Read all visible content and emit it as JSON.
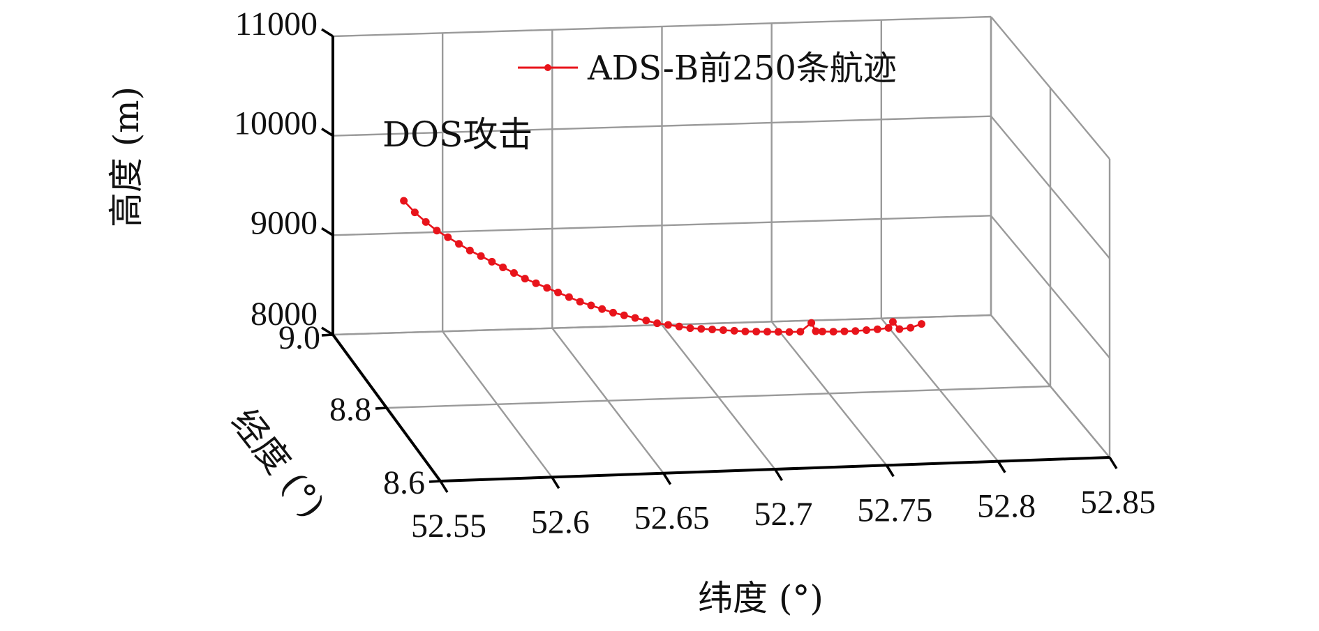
{
  "chart_data": {
    "type": "line3d",
    "series": [
      {
        "name": "ADS-B前250条航迹",
        "color": "#e8141b",
        "marker": "circle",
        "points": [
          [
            52.57,
            8.9,
            9700
          ],
          [
            52.575,
            8.9,
            9580
          ],
          [
            52.58,
            8.9,
            9480
          ],
          [
            52.585,
            8.9,
            9390
          ],
          [
            52.59,
            8.9,
            9320
          ],
          [
            52.595,
            8.9,
            9250
          ],
          [
            52.6,
            8.9,
            9180
          ],
          [
            52.605,
            8.9,
            9120
          ],
          [
            52.61,
            8.9,
            9060
          ],
          [
            52.615,
            8.9,
            9000
          ],
          [
            52.62,
            8.9,
            8940
          ],
          [
            52.625,
            8.9,
            8880
          ],
          [
            52.63,
            8.9,
            8830
          ],
          [
            52.635,
            8.9,
            8780
          ],
          [
            52.64,
            8.9,
            8730
          ],
          [
            52.645,
            8.9,
            8680
          ],
          [
            52.65,
            8.9,
            8630
          ],
          [
            52.655,
            8.9,
            8590
          ],
          [
            52.66,
            8.9,
            8550
          ],
          [
            52.665,
            8.9,
            8510
          ],
          [
            52.67,
            8.9,
            8480
          ],
          [
            52.675,
            8.9,
            8450
          ],
          [
            52.68,
            8.9,
            8420
          ],
          [
            52.685,
            8.9,
            8390
          ],
          [
            52.69,
            8.9,
            8370
          ],
          [
            52.695,
            8.9,
            8350
          ],
          [
            52.7,
            8.9,
            8330
          ],
          [
            52.705,
            8.9,
            8320
          ],
          [
            52.71,
            8.9,
            8310
          ],
          [
            52.715,
            8.9,
            8300
          ],
          [
            52.72,
            8.9,
            8290
          ],
          [
            52.725,
            8.9,
            8280
          ],
          [
            52.73,
            8.9,
            8275
          ],
          [
            52.735,
            8.9,
            8270
          ],
          [
            52.74,
            8.9,
            8265
          ],
          [
            52.745,
            8.9,
            8260
          ],
          [
            52.75,
            8.9,
            8260
          ],
          [
            52.755,
            8.9,
            8345
          ],
          [
            52.757,
            8.9,
            8260
          ],
          [
            52.76,
            8.9,
            8255
          ],
          [
            52.765,
            8.9,
            8250
          ],
          [
            52.77,
            8.9,
            8250
          ],
          [
            52.775,
            8.9,
            8250
          ],
          [
            52.78,
            8.9,
            8255
          ],
          [
            52.785,
            8.9,
            8260
          ],
          [
            52.79,
            8.9,
            8270
          ],
          [
            52.792,
            8.9,
            8330
          ],
          [
            52.795,
            8.9,
            8255
          ],
          [
            52.8,
            8.9,
            8265
          ],
          [
            52.805,
            8.9,
            8300
          ]
        ]
      }
    ],
    "xlabel": "纬度 (°)",
    "ylabel": "经度 (°)",
    "zlabel": "高度 (m)",
    "x_ticks": [
      "52.55",
      "52.6",
      "52.65",
      "52.7",
      "52.75",
      "52.8",
      "52.85"
    ],
    "y_ticks": [
      "8.6",
      "8.8",
      "9.0"
    ],
    "z_ticks": [
      "8000",
      "9000",
      "10000",
      "11000"
    ],
    "xlim": [
      52.55,
      52.85
    ],
    "ylim": [
      8.6,
      9.0
    ],
    "zlim": [
      8000,
      11000
    ],
    "annotation": "DOS攻击",
    "legend_position": "top-right",
    "grid": true
  }
}
